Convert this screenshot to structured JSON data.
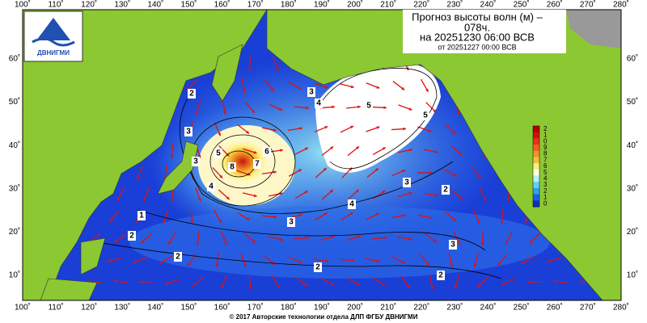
{
  "header": {
    "title_lines": [
      "Прогноз высоты волн (м) –",
      "078ч.",
      "на 20251230 06:00 ВСВ",
      "от 20251227 00:00 ВСВ"
    ]
  },
  "logo": {
    "text": "ДВНИГМИ"
  },
  "map": {
    "lon_labels": [
      "100˚",
      "110˚",
      "120˚",
      "130˚",
      "140˚",
      "150˚",
      "160˚",
      "170˚",
      "180˚",
      "190˚",
      "200˚",
      "210˚",
      "220˚",
      "230˚",
      "240˚",
      "250˚",
      "260˚",
      "270˚",
      "280˚"
    ],
    "lat_labels": [
      "60˚",
      "50˚",
      "40˚",
      "30˚",
      "20˚",
      "10˚"
    ],
    "colorbar_labels": [
      "2",
      "1",
      "0",
      "9",
      "8",
      "7",
      "6",
      "5",
      "4",
      "3",
      "2",
      "1",
      "0"
    ],
    "contour_labels": [
      "2",
      "3",
      "3",
      "4",
      "5",
      "6",
      "7",
      "8",
      "3",
      "4",
      "5",
      "5",
      "3",
      "2",
      "4",
      "3",
      "3",
      "2",
      "2",
      "2",
      "1",
      "2"
    ]
  },
  "footer": {
    "copyright": "© 2017 Авторские технологии отдела ДЛП ФГБУ ДВНИГМИ"
  }
}
